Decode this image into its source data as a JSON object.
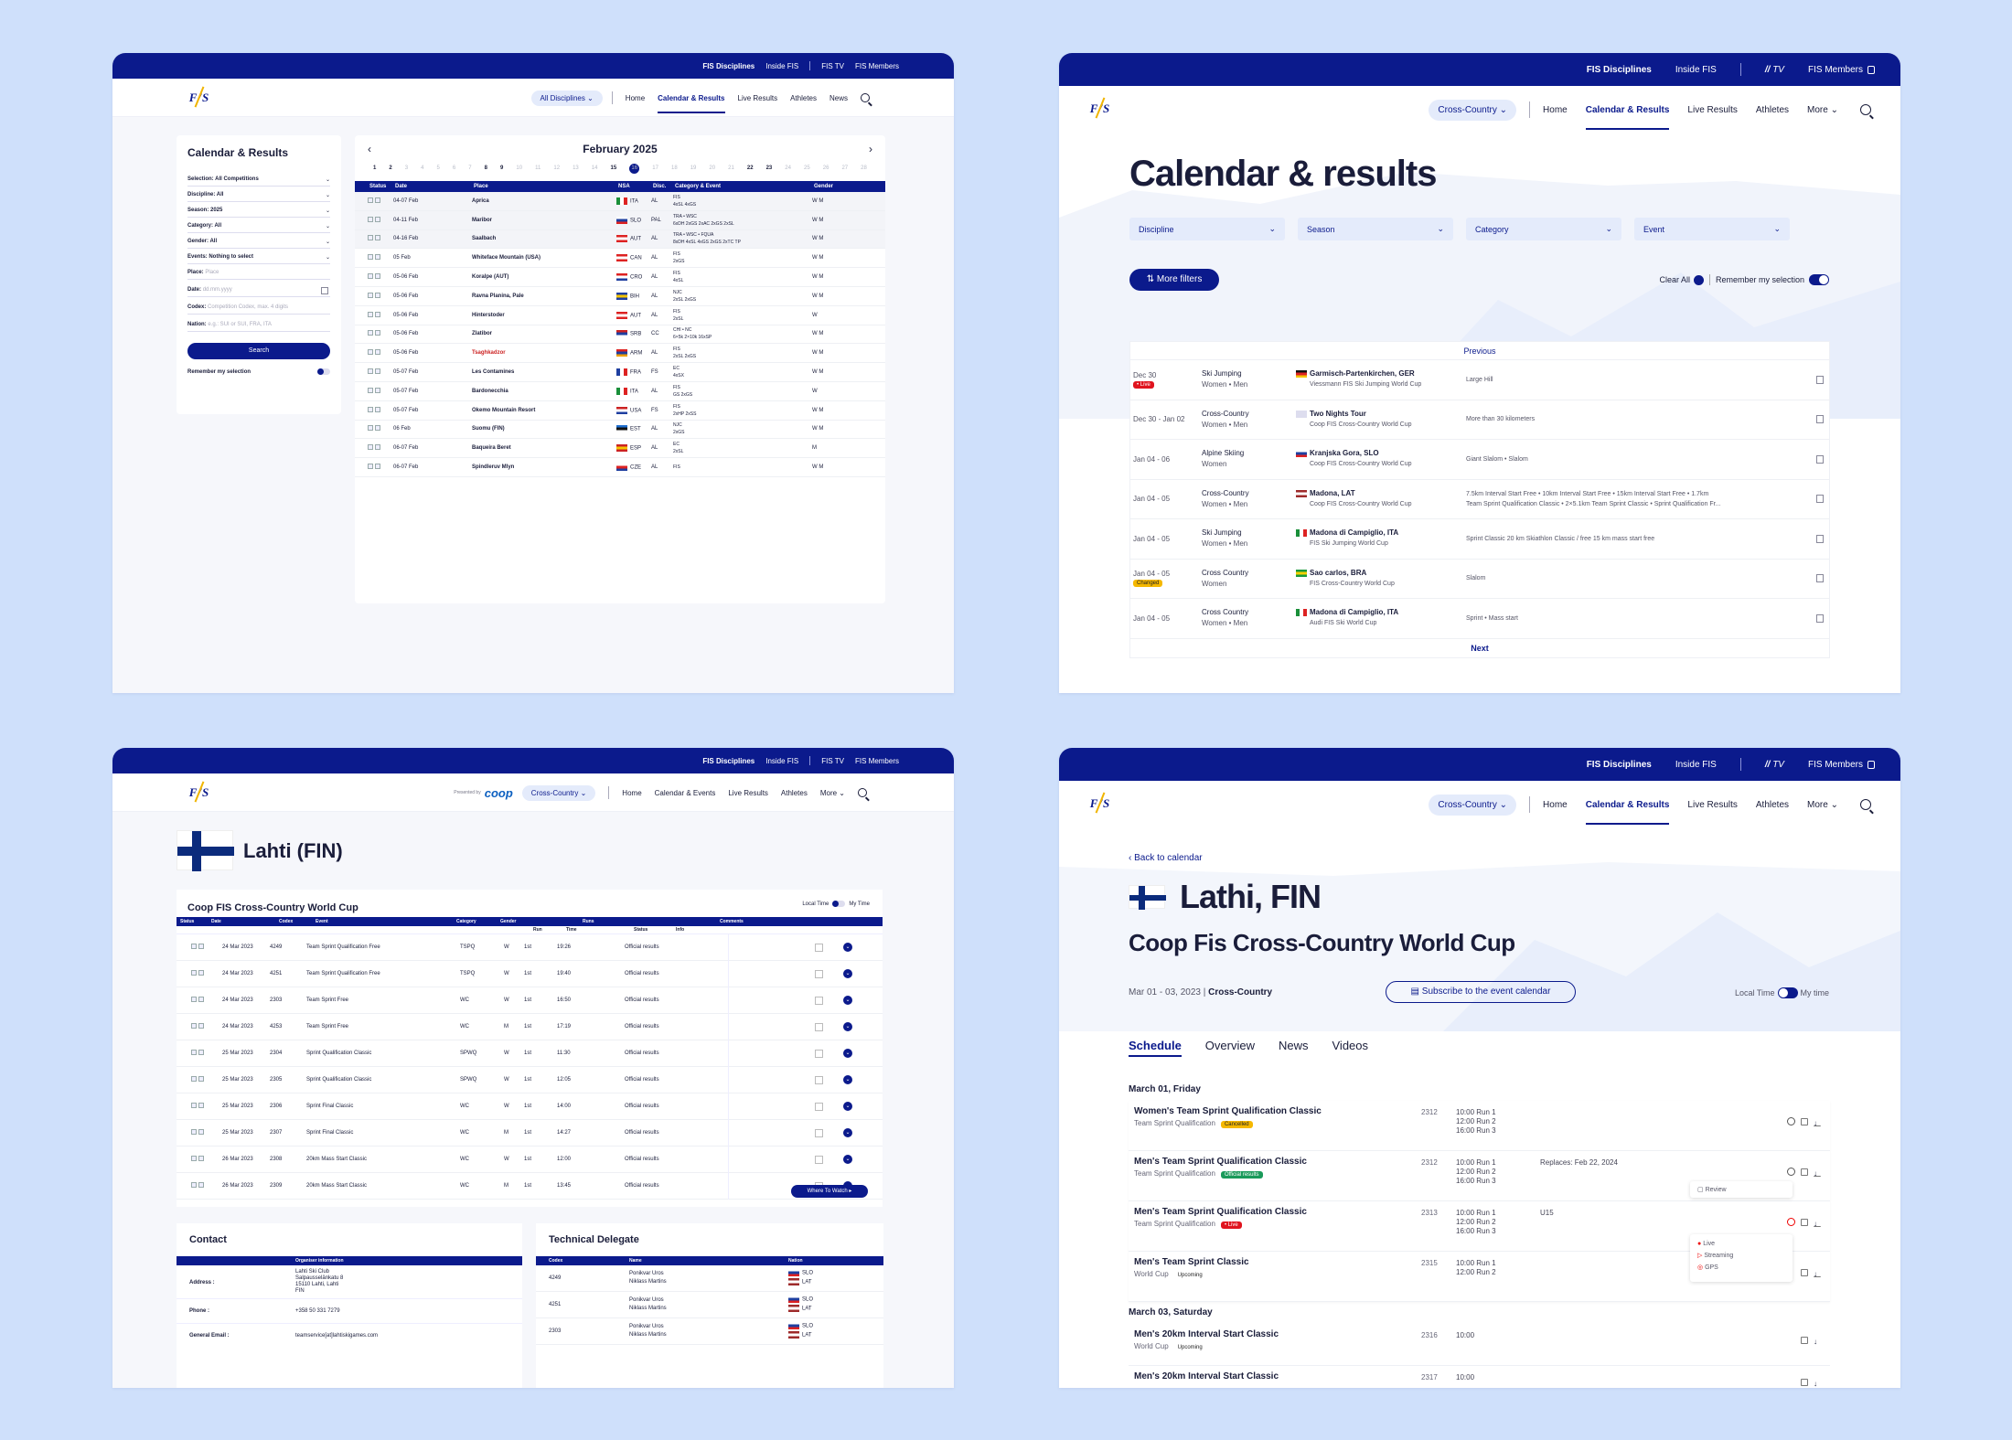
{
  "c1": {
    "top": [
      "FIS Disciplines",
      "Inside FIS",
      "FIS TV",
      "FIS Members"
    ],
    "logo": "F/S",
    "nav": {
      "pill": "All Disciplines",
      "links": [
        "Home",
        "Calendar & Results",
        "Live Results",
        "Athletes",
        "News"
      ]
    },
    "filters": {
      "title": "Calendar & Results",
      "rows": [
        "Selection: All Competitions",
        "Discipline: All",
        "Season: 2025",
        "Category: All",
        "Gender: All",
        "Events: Nothing to select"
      ],
      "place_label": "Place:",
      "place_ph": "Place",
      "date_label": "Date:",
      "date_ph": "dd.mm.yyyy",
      "codex_label": "Codex:",
      "codex_ph": "Competition Codex, max. 4 digits",
      "nation_label": "Nation:",
      "nation_ph": "e.g.: SUI or SUI, FRA, ITA",
      "search": "Search",
      "remember": "Remember my selection"
    },
    "month": "February 2025",
    "days": [
      "1",
      "2",
      "3",
      "4",
      "5",
      "6",
      "7",
      "8",
      "9",
      "10",
      "11",
      "12",
      "13",
      "14",
      "15",
      "16",
      "17",
      "18",
      "19",
      "20",
      "21",
      "22",
      "23",
      "24",
      "25",
      "26",
      "27",
      "28"
    ],
    "headers": [
      "Status",
      "Date",
      "Place",
      "NSA",
      "Disc.",
      "Category & Event",
      "Gender"
    ],
    "rows": [
      {
        "date": "04-07 Feb",
        "place": "Aprica",
        "nsa": "ITA",
        "disc": "AL",
        "cat": "FIS",
        "ev": "4xSL 4xGS",
        "g": "W M"
      },
      {
        "date": "04-11 Feb",
        "place": "Maribor",
        "nsa": "SLO",
        "disc": "PAL",
        "cat": "TRA • WSC",
        "ev": "6xDH 2xGS 2xAC 2xGS 2xSL",
        "g": "W M"
      },
      {
        "date": "04-16 Feb",
        "place": "Saalbach",
        "nsa": "AUT",
        "disc": "AL",
        "cat": "TRA • WSC • FQUA",
        "ev": "8xDH 4xSL 4xGS 2xGS 2xTC TP",
        "g": "W M"
      },
      {
        "date": "05 Feb",
        "place": "Whiteface Mountain (USA)",
        "nsa": "CAN",
        "disc": "AL",
        "cat": "FIS",
        "ev": "2xGS",
        "g": "W M"
      },
      {
        "date": "05-06 Feb",
        "place": "Koralpe (AUT)",
        "nsa": "CRO",
        "disc": "AL",
        "cat": "FIS",
        "ev": "4xSL",
        "g": "W M"
      },
      {
        "date": "05-06 Feb",
        "place": "Ravna Planina, Pale",
        "nsa": "BIH",
        "disc": "AL",
        "cat": "NJC",
        "ev": "2xSL 2xGS",
        "g": "W M"
      },
      {
        "date": "05-06 Feb",
        "place": "Hinterstoder",
        "nsa": "AUT",
        "disc": "AL",
        "cat": "FIS",
        "ev": "2xSL",
        "g": "W"
      },
      {
        "date": "05-06 Feb",
        "place": "Zlatibor",
        "nsa": "SRB",
        "disc": "CC",
        "cat": "CHI • NC",
        "ev": "6×5k 2×10k 16xSP",
        "g": "W M"
      },
      {
        "date": "05-06 Feb",
        "place": "Tsaghkadzor",
        "nsa": "ARM",
        "disc": "AL",
        "cat": "FIS",
        "ev": "2xSL 2xGS",
        "g": "W M"
      },
      {
        "date": "05-07 Feb",
        "place": "Les Contamines",
        "nsa": "FRA",
        "disc": "FS",
        "cat": "EC",
        "ev": "4xSX",
        "g": "W M"
      },
      {
        "date": "05-07 Feb",
        "place": "Bardonecchia",
        "nsa": "ITA",
        "disc": "AL",
        "cat": "FIS",
        "ev": "GS 2xGS",
        "g": "W"
      },
      {
        "date": "05-07 Feb",
        "place": "Okemo Mountain Resort",
        "nsa": "USA",
        "disc": "FS",
        "cat": "FIS",
        "ev": "2xHP 2xSS",
        "g": "W M"
      },
      {
        "date": "06 Feb",
        "place": "Suomu (FIN)",
        "nsa": "EST",
        "disc": "AL",
        "cat": "NJC",
        "ev": "2xGS",
        "g": "W M"
      },
      {
        "date": "06-07 Feb",
        "place": "Baqueira Beret",
        "nsa": "ESP",
        "disc": "AL",
        "cat": "EC",
        "ev": "2xSL",
        "g": "M"
      },
      {
        "date": "06-07 Feb",
        "place": "Spindleruv Mlyn",
        "nsa": "CZE",
        "disc": "AL",
        "cat": "FIS",
        "ev": "",
        "g": "W M"
      }
    ]
  },
  "c2": {
    "top": [
      "FIS Disciplines",
      "Inside FIS",
      "TV",
      "FIS Members"
    ],
    "nav": {
      "pill": "Cross-Country",
      "links": [
        "Home",
        "Calendar & Results",
        "Live Results",
        "Athletes",
        "More"
      ]
    },
    "title": "Calendar & results",
    "dropdowns": [
      "Discipline",
      "Season",
      "Category",
      "Event"
    ],
    "more_filters": "More filters",
    "clear_all": "Clear All",
    "remember": "Remember my selection",
    "previous": "Previous",
    "next": "Next",
    "rows": [
      {
        "date": "Dec 30",
        "badge": "• Live",
        "disc": "Ski Jumping",
        "gender": "Women • Men",
        "place": "Garmisch-Partenkirchen, GER",
        "cup": "Viessmann FIS Ski Jumping World Cup",
        "info": "Large Hill"
      },
      {
        "date": "Dec 30 - Jan 02",
        "badge": "",
        "disc": "Cross-Country",
        "gender": "Women • Men",
        "place": "Two Nights Tour",
        "cup": "Coop FIS Cross-Country World Cup",
        "info": "More than 30 kilometers"
      },
      {
        "date": "Jan 04 - 06",
        "badge": "",
        "disc": "Alpine Skiing",
        "gender": "Women",
        "place": "Kranjska Gora, SLO",
        "cup": "Coop FIS Cross-Country World Cup",
        "info": "Giant Slalom • Slalom"
      },
      {
        "date": "Jan 04 - 05",
        "badge": "",
        "disc": "Cross-Country",
        "gender": "Women • Men",
        "place": "Madona, LAT",
        "cup": "Coop FIS Cross-Country World Cup",
        "info": "7.5km Interval Start Free • 10km Interval Start Free • 15km Interval Start Free • 1.7km",
        "info2": "Team Sprint Qualification Classic • 2×5.1km Team Sprint Classic • Sprint Qualification Fr..."
      },
      {
        "date": "Jan 04 - 05",
        "badge": "",
        "disc": "Ski Jumping",
        "gender": "Women • Men",
        "place": "Madona di Campiglio, ITA",
        "cup": "FIS Ski Jumping World Cup",
        "info": "Sprint Classic 20 km Skiathlon  Classic / free 15 km mass start free"
      },
      {
        "date": "Jan 04 - 05",
        "badge": "Changed",
        "disc": "Cross Country",
        "gender": "Women",
        "place": "Sao carlos, BRA",
        "cup": "FIS Cross-Country World Cup",
        "info": "Slalom"
      },
      {
        "date": "Jan 04 - 05",
        "badge": "",
        "disc": "Cross Country",
        "gender": "Women • Men",
        "place": "Madona di Campiglio, ITA",
        "cup": "Audi FIS Ski World Cup",
        "info": "Sprint • Mass start"
      }
    ]
  },
  "c3": {
    "top": [
      "FIS Disciplines",
      "Inside FIS",
      "FIS TV",
      "FIS Members"
    ],
    "presented": "Presented by",
    "sponsor": "coop",
    "nav": {
      "pill": "Cross-Country",
      "links": [
        "Home",
        "Calendar & Events",
        "Live Results",
        "Athletes",
        "More"
      ]
    },
    "title": "Lahti (FIN)",
    "section": "Coop FIS Cross-Country World Cup",
    "local": "Local Time",
    "mytime": "My Time",
    "headers": [
      "Status",
      "Date",
      "Codex",
      "Event",
      "Category",
      "Gender",
      "Runs",
      "Comments"
    ],
    "subheaders": [
      "Run",
      "Time",
      "Status",
      "Info"
    ],
    "rows": [
      {
        "date": "24 Mar 2023",
        "codex": "4249",
        "event": "Team Sprint Qualification Free",
        "cat": "TSPQ",
        "g": "W",
        "run": "1st",
        "time": "19:26",
        "status": "Official results"
      },
      {
        "date": "24 Mar 2023",
        "codex": "4251",
        "event": "Team Sprint Qualification Free",
        "cat": "TSPQ",
        "g": "W",
        "run": "1st",
        "time": "19:40",
        "status": "Official results"
      },
      {
        "date": "24 Mar 2023",
        "codex": "2303",
        "event": "Team Sprint Free",
        "cat": "WC",
        "g": "W",
        "run": "1st",
        "time": "16:50",
        "status": "Official results"
      },
      {
        "date": "24 Mar 2023",
        "codex": "4253",
        "event": "Team Sprint Free",
        "cat": "WC",
        "g": "M",
        "run": "1st",
        "time": "17:19",
        "status": "Official results"
      },
      {
        "date": "25 Mar 2023",
        "codex": "2304",
        "event": "Sprint Qualification Classic",
        "cat": "SPWQ",
        "g": "W",
        "run": "1st",
        "time": "11:30",
        "status": "Official results"
      },
      {
        "date": "25 Mar 2023",
        "codex": "2305",
        "event": "Sprint Qualification Classic",
        "cat": "SPWQ",
        "g": "W",
        "run": "1st",
        "time": "12:05",
        "status": "Official results"
      },
      {
        "date": "25 Mar 2023",
        "codex": "2306",
        "event": "Sprint Final Classic",
        "cat": "WC",
        "g": "W",
        "run": "1st",
        "time": "14:00",
        "status": "Official results"
      },
      {
        "date": "25 Mar 2023",
        "codex": "2307",
        "event": "Sprint Final Classic",
        "cat": "WC",
        "g": "M",
        "run": "1st",
        "time": "14:27",
        "status": "Official results"
      },
      {
        "date": "26 Mar 2023",
        "codex": "2308",
        "event": "20km Mass Start Classic",
        "cat": "WC",
        "g": "W",
        "run": "1st",
        "time": "12:00",
        "status": "Official results"
      },
      {
        "date": "26 Mar 2023",
        "codex": "2309",
        "event": "20km Mass Start Classic",
        "cat": "WC",
        "g": "M",
        "run": "1st",
        "time": "13:45",
        "status": "Official results"
      }
    ],
    "watch": "Where To Watch",
    "contact": {
      "title": "Contact",
      "org_head": "Organiser information",
      "address_label": "Address :",
      "address": [
        "Lahti Ski Club",
        "Salpausselänkatu 8",
        "15110 Lahti, Lahti",
        "FIN"
      ],
      "phone_label": "Phone :",
      "phone": "+358 50 331 7279",
      "email_label": "General Email :",
      "email": "teamservice[at]lahtiskigames.com"
    },
    "td": {
      "title": "Technical Delegate",
      "headers": [
        "Codex",
        "Name",
        "Nation"
      ],
      "rows": [
        {
          "codex": "4249",
          "n1": "Ponikvar Uros",
          "n2": "Niklass Martins",
          "c1": "SLO",
          "c2": "LAT"
        },
        {
          "codex": "4251",
          "n1": "Ponikvar Uros",
          "n2": "Niklass Martins",
          "c1": "SLO",
          "c2": "LAT"
        },
        {
          "codex": "2303",
          "n1": "Ponikvar Uros",
          "n2": "Niklass Martins",
          "c1": "SLO",
          "c2": "LAT"
        }
      ]
    }
  },
  "c4": {
    "top": [
      "FIS Disciplines",
      "Inside FIS",
      "TV",
      "FIS Members"
    ],
    "nav": {
      "pill": "Cross-Country",
      "links": [
        "Home",
        "Calendar & Results",
        "Live Results",
        "Athletes",
        "More"
      ]
    },
    "back": "Back to calendar",
    "title": "Lathi, FIN",
    "subtitle": "Coop Fis Cross-Country World Cup",
    "dates": "Mar 01 - 03, 2023",
    "disc": "Cross-Country",
    "subscribe": "Subscribe to the event calendar",
    "local": "Local Time",
    "mytime": "My time",
    "tabs": [
      "Schedule",
      "Overview",
      "News",
      "Videos"
    ],
    "day1": "March 01, Friday",
    "day2": "March 03, Saturday",
    "events": [
      {
        "name": "Women's Team Sprint Qualification Classic",
        "sub": "Team Sprint Qualification",
        "badge": "Cancelled",
        "code": "2312",
        "runs": [
          "10:00 Run 1",
          "12:00 Run 2",
          "16:00 Run 3"
        ],
        "extra": ""
      },
      {
        "name": "Men's Team Sprint Qualification Classic",
        "sub": "Team Sprint Qualification",
        "badge": "Official results",
        "code": "2312",
        "runs": [
          "10:00 Run 1",
          "12:00 Run 2",
          "16:00 Run 3"
        ],
        "extra": "Replaces: Feb 22, 2024"
      },
      {
        "name": "Men's Team Sprint Qualification Classic",
        "sub": "Team Sprint Qualification",
        "badge": "• Live",
        "code": "2313",
        "runs": [
          "10:00 Run 1",
          "12:00 Run 2",
          "16:00 Run 3"
        ],
        "extra": "U15"
      },
      {
        "name": "Men's Team Sprint Classic",
        "sub": "World Cup",
        "badge": "Upcoming",
        "code": "2315",
        "runs": [
          "10:00 Run 1",
          "12:00 Run 2"
        ],
        "extra": ""
      }
    ],
    "events2": [
      {
        "name": "Men's 20km Interval Start Classic",
        "sub": "World Cup",
        "badge": "Upcoming",
        "code": "2316",
        "runs": [
          "10:00"
        ]
      },
      {
        "name": "Men's 20km Interval Start Classic",
        "sub": "",
        "badge": "",
        "code": "2317",
        "runs": [
          "10:00"
        ]
      }
    ],
    "popup1": "Review",
    "popup2": [
      "Live",
      "Streaming",
      "GPS"
    ]
  }
}
